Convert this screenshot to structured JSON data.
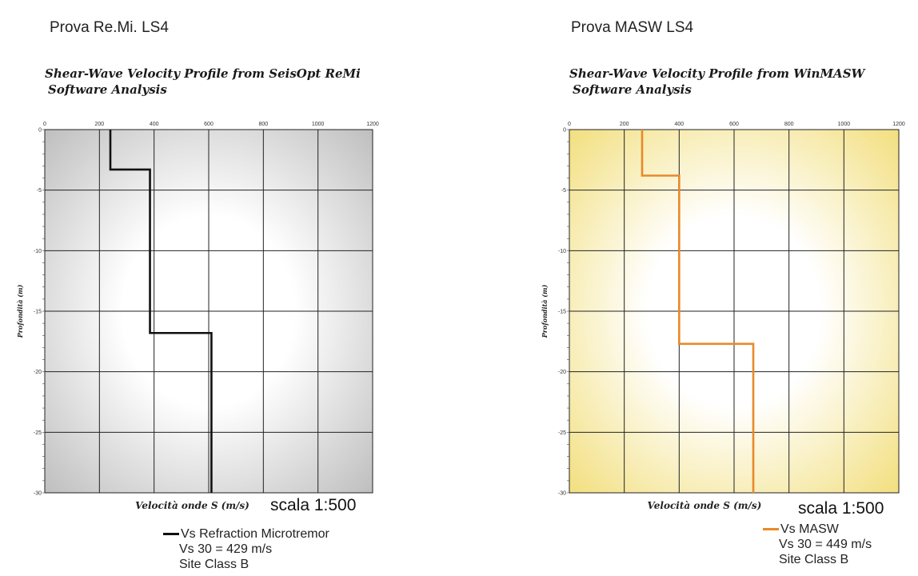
{
  "panels": [
    {
      "heading": "Prova Re.Mi. LS4",
      "chart_title_line1": "Shear-Wave Velocity Profile from SeisOpt ReMi",
      "chart_title_line2": "Software Analysis",
      "scale_label": "scala 1:500",
      "legend": {
        "series_label": "Vs Refraction Microtremor",
        "vs30": "Vs 30 = 429  m/s",
        "site_class": "Site Class B"
      },
      "colors": {
        "line": "#111111",
        "bg_edge": "#b8b8b8",
        "bg_center": "#ffffff"
      }
    },
    {
      "heading": "Prova MASW  LS4",
      "chart_title_line1": "Shear-Wave Velocity Profile from WinMASW",
      "chart_title_line2": "Software Analysis",
      "scale_label": "scala 1:500",
      "legend": {
        "series_label": "Vs MASW",
        "vs30": "Vs 30 = 449 m/s",
        "site_class": "Site Class B"
      },
      "colors": {
        "line": "#e8892a",
        "bg_edge": "#f1dc72",
        "bg_center": "#ffffff"
      }
    }
  ],
  "chart_data": [
    {
      "type": "line",
      "title": "Shear-Wave Velocity Profile from SeisOpt ReMi Software Analysis",
      "xlabel": "Velocità onde S (m/s)",
      "ylabel": "Profondità (m)",
      "xlim": [
        0,
        1200
      ],
      "ylim": [
        -30,
        0
      ],
      "xticks": [
        0,
        200,
        400,
        600,
        800,
        1000,
        1200
      ],
      "yticks": [
        0,
        -5,
        -10,
        -15,
        -20,
        -25,
        -30
      ],
      "grid": true,
      "series": [
        {
          "name": "Vs Refraction Microtremor",
          "x": [
            240,
            240,
            385,
            385,
            610,
            610
          ],
          "y": [
            0,
            -3.3,
            -3.3,
            -16.8,
            -16.8,
            -30
          ]
        }
      ]
    },
    {
      "type": "line",
      "title": "Shear-Wave Velocity Profile from WinMASW Software Analysis",
      "xlabel": "Velocità onde S (m/s)",
      "ylabel": "Profondità (m)",
      "xlim": [
        0,
        1200
      ],
      "ylim": [
        -30,
        0
      ],
      "xticks": [
        0,
        200,
        400,
        600,
        800,
        1000,
        1200
      ],
      "yticks": [
        0,
        -5,
        -10,
        -15,
        -20,
        -25,
        -30
      ],
      "grid": true,
      "series": [
        {
          "name": "Vs MASW",
          "x": [
            265,
            265,
            400,
            400,
            670,
            670
          ],
          "y": [
            0,
            -3.8,
            -3.8,
            -17.7,
            -17.7,
            -30
          ]
        }
      ]
    }
  ]
}
